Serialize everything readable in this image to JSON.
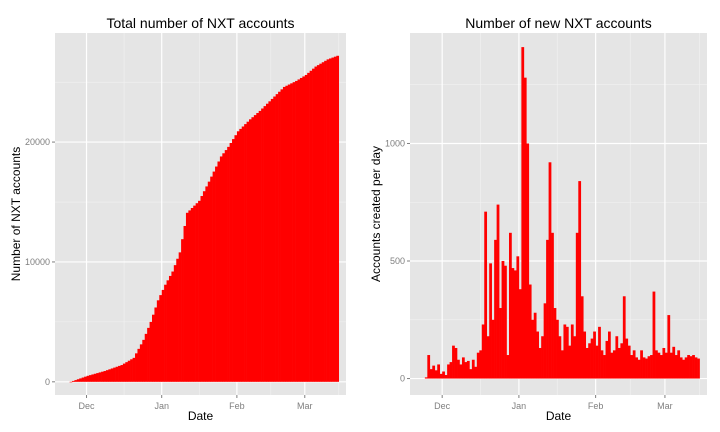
{
  "colors": {
    "panel_background": "#e5e5e5",
    "grid_major": "#ffffff",
    "grid_minor": "#f2f2f2",
    "bars": "#ff0000",
    "tick_text": "#7f7f7f"
  },
  "chart_data": [
    {
      "type": "area",
      "title": "Total number of NXT accounts",
      "xlabel": "Date",
      "ylabel": "Number of NXT accounts",
      "xlim": [
        "2013-11-18",
        "2014-03-18"
      ],
      "ylim": [
        -1100,
        29100
      ],
      "x_ticks": [
        {
          "date": "2013-12-01",
          "label": "Dec"
        },
        {
          "date": "2014-01-01",
          "label": "Jan"
        },
        {
          "date": "2014-02-01",
          "label": "Feb"
        },
        {
          "date": "2014-03-01",
          "label": "Mar"
        }
      ],
      "y_ticks": [
        {
          "value": 0,
          "label": "0"
        },
        {
          "value": 10000,
          "label": "10000"
        },
        {
          "value": 20000,
          "label": "20000"
        }
      ],
      "grid": true,
      "series": [
        {
          "x": [
            "2013-11-24",
            "2013-12-01",
            "2013-12-08",
            "2013-12-15",
            "2013-12-20",
            "2013-12-24",
            "2013-12-27",
            "2013-12-30",
            "2014-01-02",
            "2014-01-05",
            "2014-01-08",
            "2014-01-11",
            "2014-01-14",
            "2014-01-16",
            "2014-01-20",
            "2014-01-25",
            "2014-01-28",
            "2014-02-01",
            "2014-02-06",
            "2014-02-10",
            "2014-02-15",
            "2014-02-20",
            "2014-02-25",
            "2014-03-01",
            "2014-03-05",
            "2014-03-10",
            "2014-03-14"
          ],
          "values": [
            0,
            500,
            900,
            1400,
            2000,
            3500,
            5000,
            6800,
            8100,
            9200,
            10800,
            14100,
            14700,
            15100,
            16700,
            18800,
            19600,
            20900,
            21900,
            22600,
            23600,
            24600,
            25100,
            25600,
            26300,
            26900,
            27200
          ]
        }
      ]
    },
    {
      "type": "bar",
      "title": "Number of new NXT accounts",
      "xlabel": "Date",
      "ylabel": "Accounts created per day",
      "xlim": [
        "2013-11-18",
        "2014-03-18"
      ],
      "ylim": [
        -70,
        1470
      ],
      "x_ticks": [
        {
          "date": "2013-12-01",
          "label": "Dec"
        },
        {
          "date": "2014-01-01",
          "label": "Jan"
        },
        {
          "date": "2014-02-01",
          "label": "Feb"
        },
        {
          "date": "2014-03-01",
          "label": "Mar"
        }
      ],
      "y_ticks": [
        {
          "value": 0,
          "label": "0"
        },
        {
          "value": 500,
          "label": "500"
        },
        {
          "value": 1000,
          "label": "1000"
        }
      ],
      "grid": true,
      "series": [
        {
          "x": [
            "2013-11-24",
            "2013-11-25",
            "2013-11-26",
            "2013-11-27",
            "2013-11-28",
            "2013-11-29",
            "2013-11-30",
            "2013-12-01",
            "2013-12-02",
            "2013-12-03",
            "2013-12-04",
            "2013-12-05",
            "2013-12-06",
            "2013-12-07",
            "2013-12-08",
            "2013-12-09",
            "2013-12-10",
            "2013-12-11",
            "2013-12-12",
            "2013-12-13",
            "2013-12-14",
            "2013-12-15",
            "2013-12-16",
            "2013-12-17",
            "2013-12-18",
            "2013-12-19",
            "2013-12-20",
            "2013-12-21",
            "2013-12-22",
            "2013-12-23",
            "2013-12-24",
            "2013-12-25",
            "2013-12-26",
            "2013-12-27",
            "2013-12-28",
            "2013-12-29",
            "2013-12-30",
            "2013-12-31",
            "2014-01-01",
            "2014-01-02",
            "2014-01-03",
            "2014-01-04",
            "2014-01-05",
            "2014-01-06",
            "2014-01-07",
            "2014-01-08",
            "2014-01-09",
            "2014-01-10",
            "2014-01-11",
            "2014-01-12",
            "2014-01-13",
            "2014-01-14",
            "2014-01-15",
            "2014-01-16",
            "2014-01-17",
            "2014-01-18",
            "2014-01-19",
            "2014-01-20",
            "2014-01-21",
            "2014-01-22",
            "2014-01-23",
            "2014-01-24",
            "2014-01-25",
            "2014-01-26",
            "2014-01-27",
            "2014-01-28",
            "2014-01-29",
            "2014-01-30",
            "2014-01-31",
            "2014-02-01",
            "2014-02-02",
            "2014-02-03",
            "2014-02-04",
            "2014-02-05",
            "2014-02-06",
            "2014-02-07",
            "2014-02-08",
            "2014-02-09",
            "2014-02-10",
            "2014-02-11",
            "2014-02-12",
            "2014-02-13",
            "2014-02-14",
            "2014-02-15",
            "2014-02-16",
            "2014-02-17",
            "2014-02-18",
            "2014-02-19",
            "2014-02-20",
            "2014-02-21",
            "2014-02-22",
            "2014-02-23",
            "2014-02-24",
            "2014-02-25",
            "2014-02-26",
            "2014-02-27",
            "2014-02-28",
            "2014-03-01",
            "2014-03-02",
            "2014-03-03",
            "2014-03-04",
            "2014-03-05",
            "2014-03-06",
            "2014-03-07",
            "2014-03-08",
            "2014-03-09",
            "2014-03-10",
            "2014-03-11",
            "2014-03-12",
            "2014-03-13",
            "2014-03-14"
          ],
          "values": [
            5,
            100,
            40,
            55,
            35,
            60,
            20,
            30,
            15,
            60,
            70,
            140,
            130,
            80,
            60,
            90,
            70,
            75,
            40,
            80,
            50,
            110,
            120,
            230,
            710,
            180,
            490,
            250,
            590,
            740,
            300,
            500,
            480,
            100,
            620,
            470,
            460,
            520,
            380,
            1410,
            1280,
            1000,
            400,
            250,
            280,
            200,
            130,
            180,
            320,
            590,
            920,
            620,
            300,
            250,
            180,
            120,
            230,
            220,
            140,
            230,
            180,
            620,
            840,
            350,
            200,
            130,
            150,
            170,
            200,
            140,
            220,
            120,
            100,
            160,
            200,
            110,
            120,
            180,
            130,
            150,
            350,
            170,
            140,
            100,
            120,
            90,
            80,
            120,
            90,
            85,
            95,
            100,
            370,
            120,
            110,
            100,
            130,
            110,
            270,
            110,
            135,
            100,
            120,
            90,
            80,
            90,
            100,
            95,
            100,
            90,
            85
          ]
        }
      ]
    }
  ],
  "panels": [
    {
      "title": "Total number of NXT accounts",
      "xlabel": "Date",
      "ylabel": "Number of NXT accounts"
    },
    {
      "title": "Number of new NXT accounts",
      "xlabel": "Date",
      "ylabel": "Accounts created per day"
    }
  ]
}
